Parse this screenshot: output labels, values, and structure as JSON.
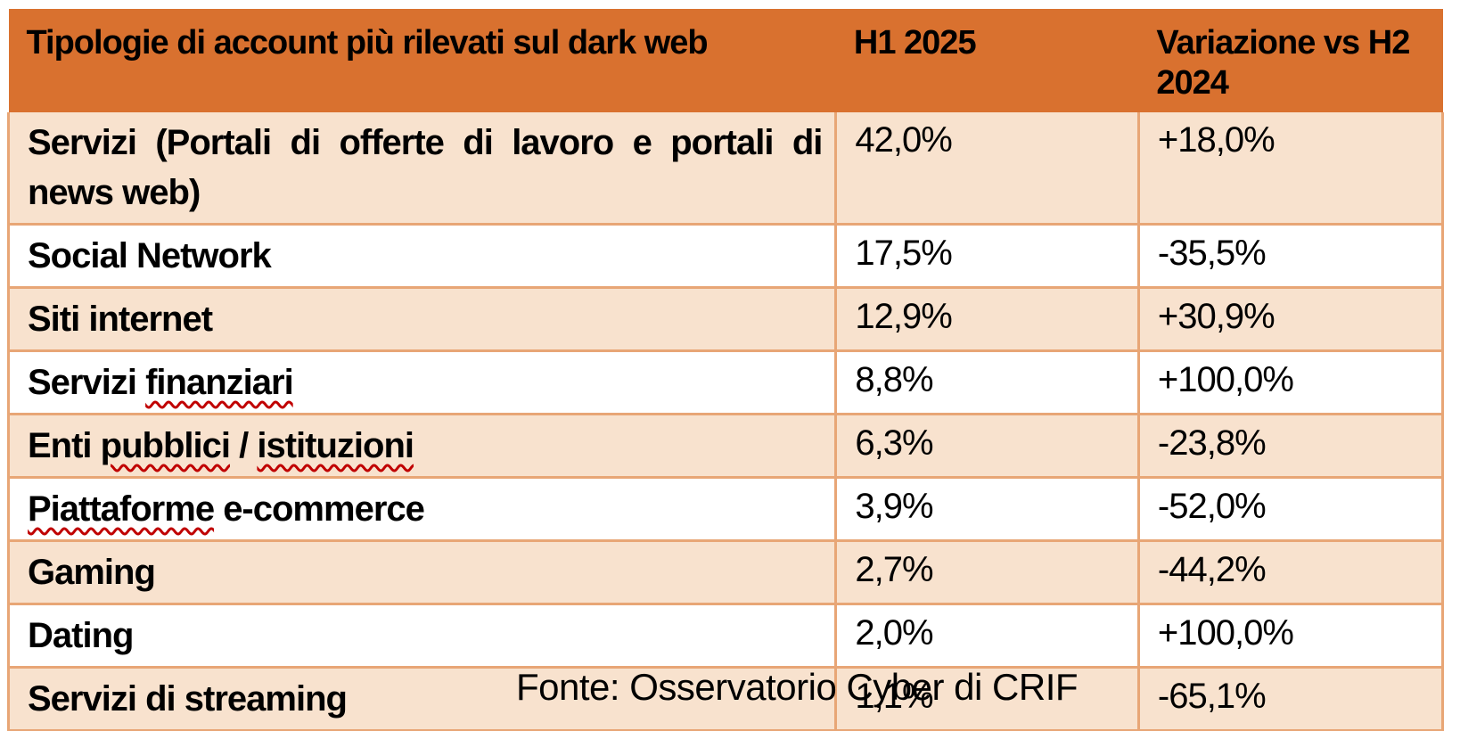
{
  "table": {
    "columns": [
      {
        "label": "Tipologie di account più rilevati sul dark web"
      },
      {
        "label": "H1 2025"
      },
      {
        "label": "Variazione vs H2 2024"
      }
    ],
    "squiggle_words": [
      "finanziari",
      "pubblici",
      "istituzioni",
      "Piattaforme"
    ],
    "rows": [
      {
        "label": "Servizi (Portali di offerte di lavoro e portali di news web)",
        "h1_2025": "42,0%",
        "variation_vs_h2_2024": "+18,0%"
      },
      {
        "label": "Social Network",
        "h1_2025": "17,5%",
        "variation_vs_h2_2024": "-35,5%"
      },
      {
        "label": "Siti internet",
        "h1_2025": "12,9%",
        "variation_vs_h2_2024": "+30,9%"
      },
      {
        "label": "Servizi finanziari",
        "h1_2025": "8,8%",
        "variation_vs_h2_2024": "+100,0%"
      },
      {
        "label": "Enti pubblici / istituzioni",
        "h1_2025": "6,3%",
        "variation_vs_h2_2024": "-23,8%"
      },
      {
        "label": "Piattaforme e-commerce",
        "h1_2025": "3,9%",
        "variation_vs_h2_2024": "-52,0%"
      },
      {
        "label": "Gaming",
        "h1_2025": "2,7%",
        "variation_vs_h2_2024": "-44,2%"
      },
      {
        "label": "Dating",
        "h1_2025": "2,0%",
        "variation_vs_h2_2024": "+100,0%"
      },
      {
        "label": "Servizi di streaming",
        "h1_2025": "1,1%",
        "variation_vs_h2_2024": "-65,1%"
      }
    ]
  },
  "caption": "Fonte: Osservatorio Cyber di CRIF",
  "colors": {
    "header_bg": "#D9712F",
    "row_alt_bg": "#F8E2CE",
    "row_bg": "#FFFFFF",
    "border": "#E8A676",
    "text": "#000000",
    "squiggle": "#C00000"
  }
}
